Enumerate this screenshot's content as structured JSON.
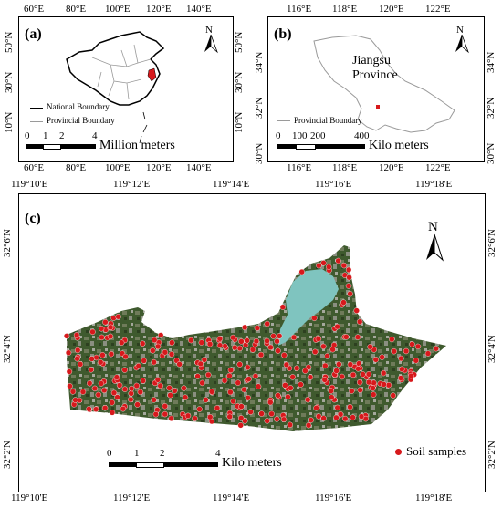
{
  "panel_a": {
    "label": "(a)",
    "lon_ticks": [
      "60°E",
      "80°E",
      "100°E",
      "120°E",
      "140°E"
    ],
    "lat_ticks": [
      "50°N",
      "30°N",
      "10°N"
    ],
    "legend": [
      "National Boundary",
      "Provincial Boundary"
    ],
    "scale_numbers": [
      "0",
      "1",
      "2",
      "4"
    ],
    "scale_unit": "Million meters",
    "north": "N"
  },
  "panel_b": {
    "label": "(b)",
    "lon_ticks": [
      "116°E",
      "118°E",
      "120°E",
      "122°E"
    ],
    "lat_ticks": [
      "34°N",
      "32°N",
      "30°N"
    ],
    "province_name_1": "Jiangsu",
    "province_name_2": "Province",
    "legend": "Provincial Boundary",
    "scale_numbers": [
      "0",
      "100",
      "200",
      "400"
    ],
    "scale_unit": "Kilo meters",
    "north": "N"
  },
  "panel_c": {
    "label": "(c)",
    "lon_ticks": [
      "119°10'E",
      "119°12'E",
      "119°14'E",
      "119°16'E",
      "119°18'E"
    ],
    "lat_ticks": [
      "32°6'N",
      "32°4'N",
      "32°2'N"
    ],
    "legend": "Soil samples",
    "scale_numbers": [
      "0",
      "1",
      "2",
      "4"
    ],
    "scale_unit": "Kilo meters",
    "north": "N"
  },
  "colors": {
    "sample": "#d7191c",
    "water": "#7fc4bf",
    "vegetation": "#3f5a2e",
    "boundary": "#000000",
    "province_line": "#9a9a9a"
  }
}
